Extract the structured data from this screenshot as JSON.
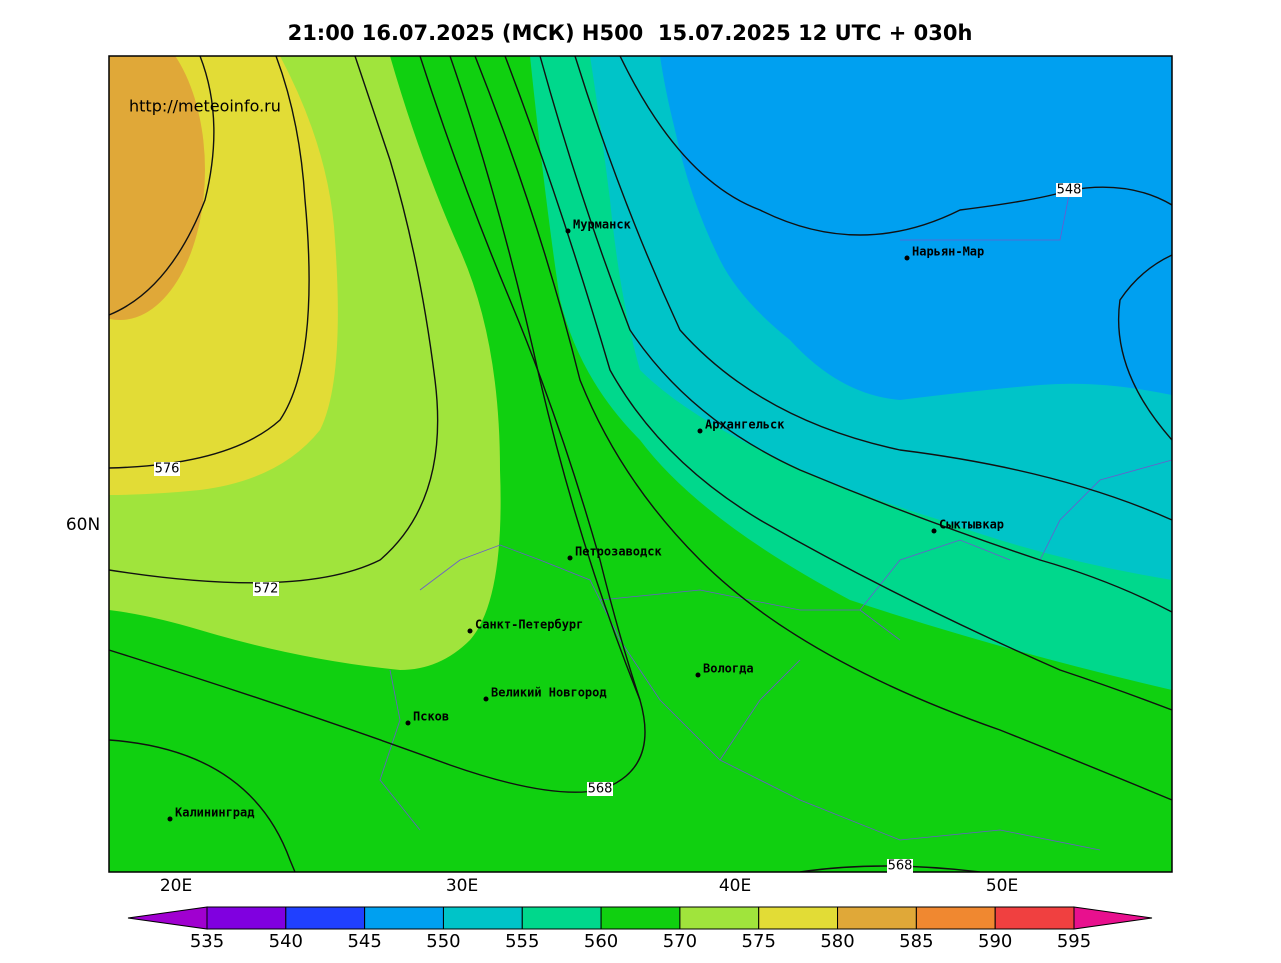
{
  "header": {
    "title": "21:00 16.07.2025 (МСК) H500  15.07.2025 12 UTC + 030h"
  },
  "watermark": "http://meteoinfo.ru",
  "axes": {
    "lat_labels": [
      "60N"
    ],
    "lon_labels": [
      "20E",
      "30E",
      "40E",
      "50E"
    ]
  },
  "cities": [
    "Мурманск",
    "Нарьян-Мар",
    "Архангельск",
    "Сыктывкар",
    "Петрозаводск",
    "Санкт-Петербург",
    "Вологда",
    "Великий Новгород",
    "Псков",
    "Калининград"
  ],
  "contour_labels": [
    576,
    572,
    568,
    568,
    548
  ],
  "colorbar": {
    "ticks": [
      535,
      540,
      545,
      550,
      555,
      560,
      570,
      575,
      580,
      585,
      590,
      595
    ],
    "colors": [
      "#a000d0",
      "#8000e0",
      "#2040ff",
      "#00a0f0",
      "#00c4c8",
      "#00d88c",
      "#10d010",
      "#a0e43c",
      "#e2dc36",
      "#e0a838",
      "#f08830",
      "#f04040",
      "#e8108e"
    ]
  }
}
